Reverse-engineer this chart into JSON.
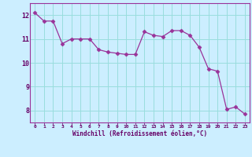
{
  "x": [
    0,
    1,
    2,
    3,
    4,
    5,
    6,
    7,
    8,
    9,
    10,
    11,
    12,
    13,
    14,
    15,
    16,
    17,
    18,
    19,
    20,
    21,
    22,
    23
  ],
  "y": [
    12.1,
    11.75,
    11.75,
    10.8,
    11.0,
    11.0,
    11.0,
    10.55,
    10.45,
    10.4,
    10.35,
    10.35,
    11.3,
    11.15,
    11.1,
    11.35,
    11.35,
    11.15,
    10.65,
    9.75,
    9.65,
    8.05,
    8.15,
    7.85
  ],
  "line_color": "#993399",
  "marker": "D",
  "marker_size": 2.5,
  "bg_color": "#cceeff",
  "grid_color": "#99dddd",
  "xlabel": "Windchill (Refroidissement éolien,°C)",
  "xlabel_color": "#660066",
  "tick_color": "#660066",
  "ylim": [
    7.5,
    12.5
  ],
  "xlim": [
    -0.5,
    23.5
  ],
  "yticks": [
    8,
    9,
    10,
    11,
    12
  ],
  "xticks": [
    0,
    1,
    2,
    3,
    4,
    5,
    6,
    7,
    8,
    9,
    10,
    11,
    12,
    13,
    14,
    15,
    16,
    17,
    18,
    19,
    20,
    21,
    22,
    23
  ],
  "spine_color": "#993399"
}
